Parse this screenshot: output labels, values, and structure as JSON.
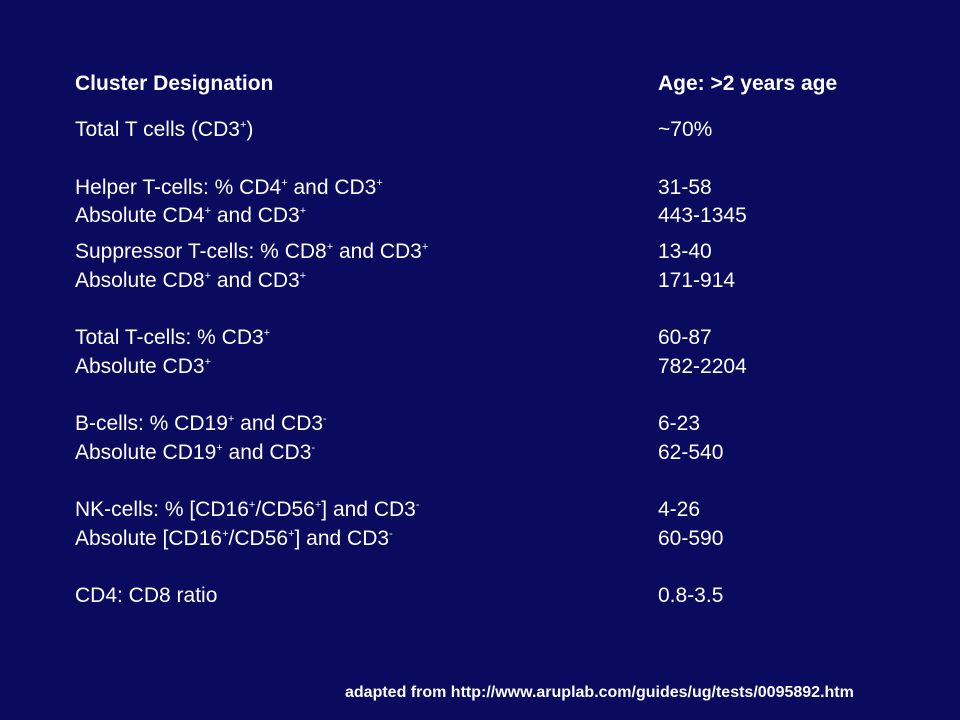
{
  "slide": {
    "background_color": "#0a0a5e",
    "text_color": "#ffffff"
  },
  "header": {
    "label": "Cluster Designation",
    "value": "Age: >2 years age"
  },
  "rows": [
    {
      "label_parts": [
        "Total T cells (CD3",
        "+",
        ")"
      ],
      "value": "~70%"
    },
    {
      "label_parts": [
        "Helper T-cells: % CD4",
        "+",
        " and CD3",
        "+",
        ""
      ],
      "value": "31-58"
    },
    {
      "label_parts": [
        "Absolute CD4",
        "+",
        " and CD3",
        "+",
        ""
      ],
      "value": "443-1345"
    },
    {
      "label_parts": [
        "Suppressor T-cells: % CD8",
        "+",
        " and CD3",
        "+",
        ""
      ],
      "value": "13-40"
    },
    {
      "label_parts": [
        "Absolute CD8",
        "+",
        " and CD3",
        "+",
        ""
      ],
      "value": "171-914"
    },
    {
      "label_parts": [
        "Total T-cells: % CD3",
        "+",
        ""
      ],
      "value": "60-87"
    },
    {
      "label_parts": [
        "Absolute CD3",
        "+",
        ""
      ],
      "value": "782-2204"
    },
    {
      "label_parts": [
        "B-cells: % CD19",
        "+",
        " and CD3",
        "-",
        ""
      ],
      "value": "6-23"
    },
    {
      "label_parts": [
        "Absolute CD19",
        "+",
        " and CD3",
        "-",
        ""
      ],
      "value": "62-540"
    },
    {
      "label_parts": [
        "NK-cells: % [CD16",
        "+",
        "/CD56",
        "+",
        "] and CD3",
        "-",
        ""
      ],
      "value": "4-26"
    },
    {
      "label_parts": [
        "Absolute [CD16",
        "+",
        "/CD56",
        "+",
        "] and CD3",
        "-",
        ""
      ],
      "value": "60-590"
    },
    {
      "label_parts": [
        "CD4: CD8 ratio"
      ],
      "value": "0.8-3.5"
    }
  ],
  "footer": {
    "source": "adapted from http://www.aruplab.com/guides/ug/tests/0095892.htm"
  }
}
